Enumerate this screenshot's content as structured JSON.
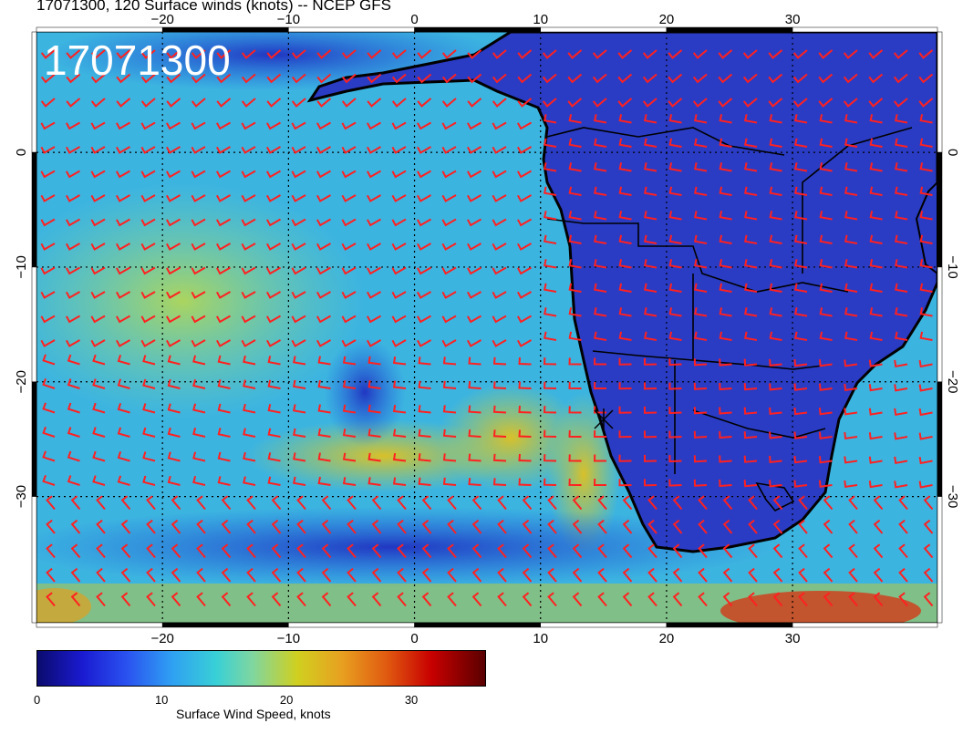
{
  "header": {
    "title": "17071300, 120 Surface winds (knots) -- NCEP GFS"
  },
  "map": {
    "datestamp": "17071300",
    "lon_range": [
      -30,
      41.5
    ],
    "lat_range": [
      -41,
      10.5
    ],
    "lon_ticks": [
      -20,
      -10,
      0,
      10,
      20,
      30
    ],
    "lon_tick_labels": [
      "−20",
      "−10",
      "0",
      "10",
      "20",
      "30"
    ],
    "lat_ticks": [
      0,
      -10,
      -20,
      -30
    ],
    "lat_tick_labels": [
      "0",
      "−10",
      "−20",
      "−30"
    ],
    "gridlines": "dotted",
    "land_color": "#2538c0",
    "ocean_color": "#36b0e0",
    "barb_color": "#ff2020",
    "coastline_color": "#000000"
  },
  "colorbar": {
    "min": 0,
    "max": 36,
    "tick_values": [
      0,
      10,
      20,
      30
    ],
    "tick_labels": [
      "0",
      "10",
      "20",
      "30"
    ],
    "title": "Surface Wind Speed, knots"
  }
}
